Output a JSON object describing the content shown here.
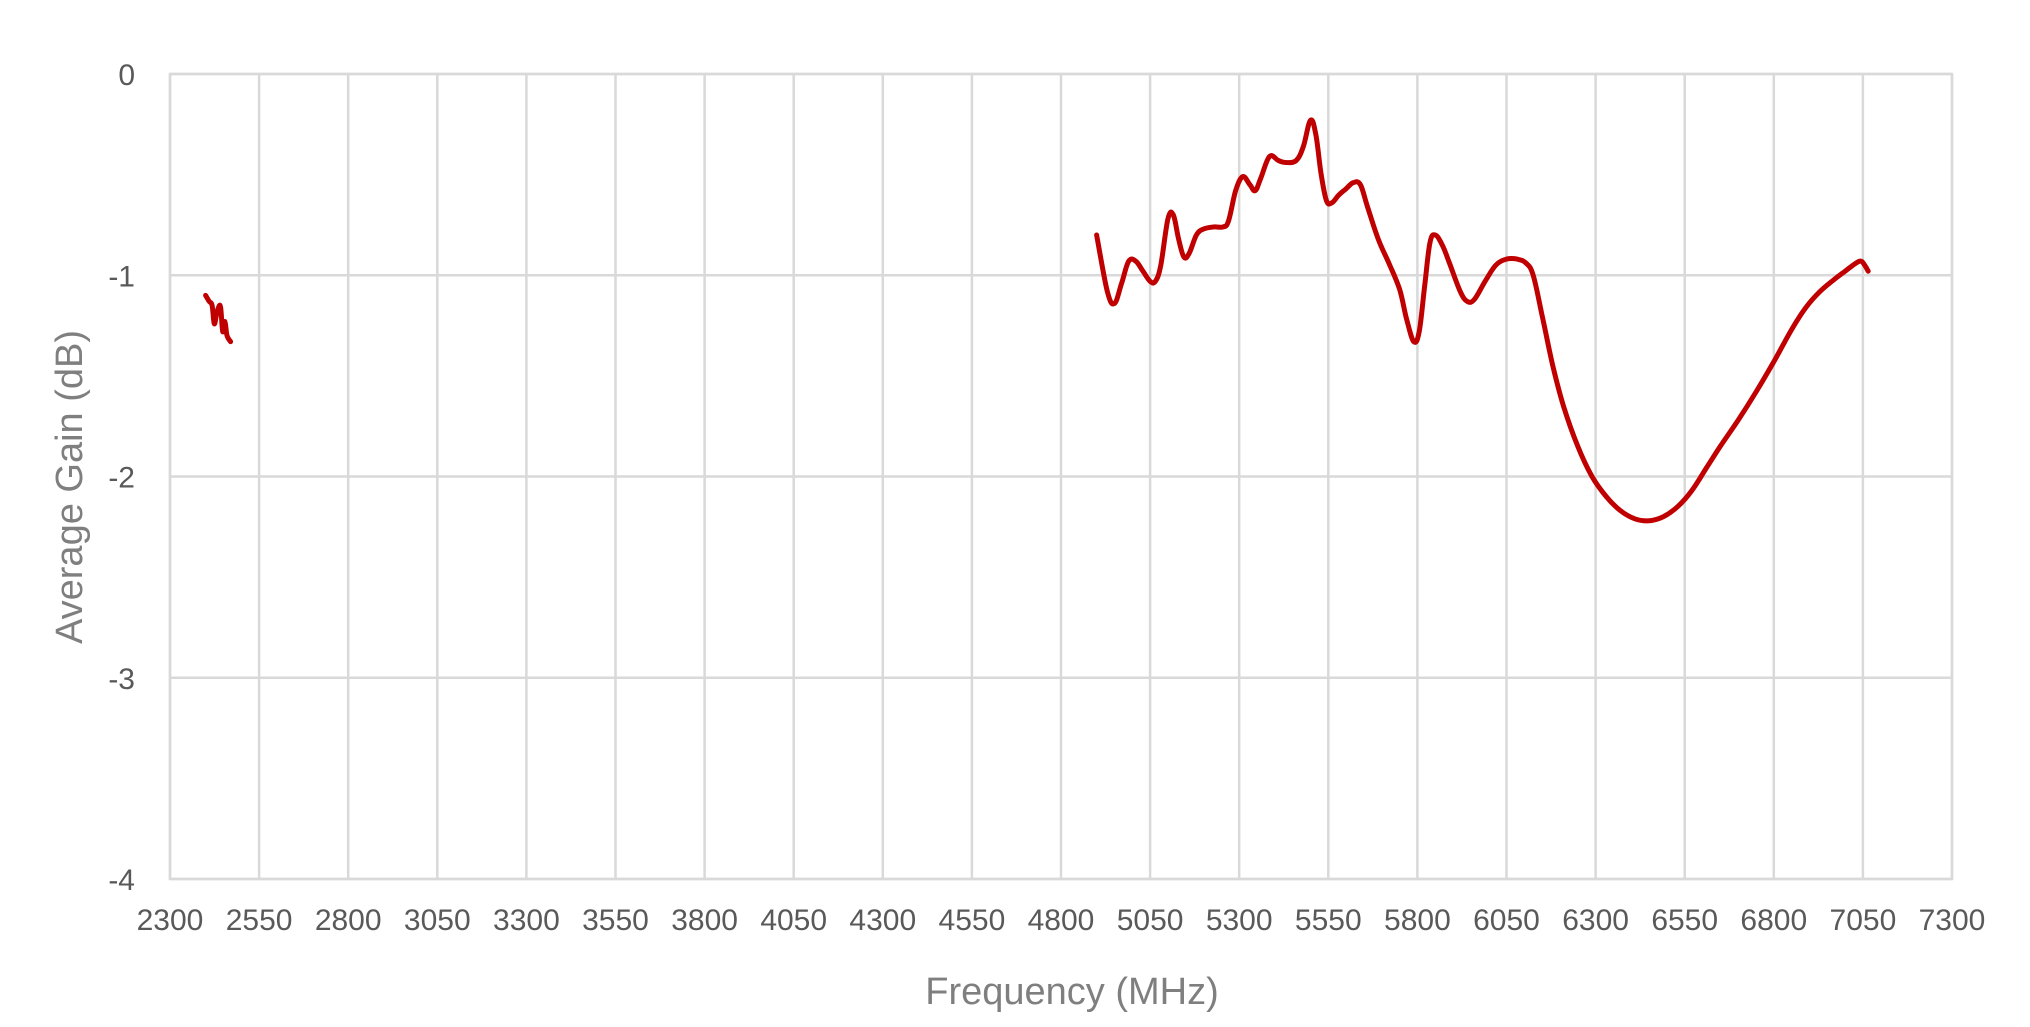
{
  "chart_data": {
    "type": "line",
    "title": "",
    "xlabel": "Frequency (MHz)",
    "ylabel": "Average Gain (dB)",
    "xlim": [
      2300,
      7300
    ],
    "ylim": [
      -4,
      0
    ],
    "x_ticks": [
      2300,
      2550,
      2800,
      3050,
      3300,
      3550,
      3800,
      4050,
      4300,
      4550,
      4800,
      5050,
      5300,
      5550,
      5800,
      6050,
      6300,
      6550,
      6800,
      7050,
      7300
    ],
    "x_tick_labels": [
      "2300",
      "2550",
      "2800",
      "3050",
      "3300",
      "3550",
      "3800",
      "4050",
      "4300",
      "4550",
      "4800",
      "5050",
      "5300",
      "5550",
      "5800",
      "6050",
      "6300",
      "6550",
      "6800",
      "7050",
      "7300"
    ],
    "y_ticks": [
      0,
      -1,
      -2,
      -3,
      -4
    ],
    "y_tick_labels": [
      "0",
      "-1",
      "-2",
      "-3",
      "-4"
    ],
    "grid": true,
    "legend": "none",
    "line_color": "#C00000",
    "grid_color": "#D9D9D9",
    "series": [
      {
        "segments": [
          [
            [
              2400,
              -1.1
            ],
            [
              2410,
              -1.13
            ],
            [
              2418,
              -1.15
            ],
            [
              2424,
              -1.24
            ],
            [
              2430,
              -1.2
            ],
            [
              2436,
              -1.16
            ],
            [
              2442,
              -1.16
            ],
            [
              2448,
              -1.28
            ],
            [
              2454,
              -1.23
            ],
            [
              2460,
              -1.3
            ],
            [
              2470,
              -1.33
            ]
          ],
          [
            [
              4900,
              -0.8
            ],
            [
              4930,
              -1.08
            ],
            [
              4950,
              -1.14
            ],
            [
              4970,
              -1.04
            ],
            [
              4990,
              -0.93
            ],
            [
              5010,
              -0.93
            ],
            [
              5030,
              -0.98
            ],
            [
              5050,
              -1.03
            ],
            [
              5065,
              -1.03
            ],
            [
              5080,
              -0.95
            ],
            [
              5100,
              -0.72
            ],
            [
              5115,
              -0.7
            ],
            [
              5130,
              -0.82
            ],
            [
              5145,
              -0.91
            ],
            [
              5160,
              -0.89
            ],
            [
              5180,
              -0.8
            ],
            [
              5200,
              -0.77
            ],
            [
              5230,
              -0.76
            ],
            [
              5255,
              -0.76
            ],
            [
              5270,
              -0.73
            ],
            [
              5290,
              -0.58
            ],
            [
              5310,
              -0.51
            ],
            [
              5330,
              -0.55
            ],
            [
              5345,
              -0.58
            ],
            [
              5360,
              -0.52
            ],
            [
              5385,
              -0.41
            ],
            [
              5410,
              -0.43
            ],
            [
              5430,
              -0.44
            ],
            [
              5460,
              -0.43
            ],
            [
              5480,
              -0.36
            ],
            [
              5500,
              -0.23
            ],
            [
              5515,
              -0.3
            ],
            [
              5530,
              -0.5
            ],
            [
              5545,
              -0.63
            ],
            [
              5560,
              -0.64
            ],
            [
              5580,
              -0.6
            ],
            [
              5600,
              -0.57
            ],
            [
              5620,
              -0.54
            ],
            [
              5640,
              -0.55
            ],
            [
              5660,
              -0.66
            ],
            [
              5690,
              -0.82
            ],
            [
              5720,
              -0.94
            ],
            [
              5750,
              -1.07
            ],
            [
              5770,
              -1.22
            ],
            [
              5790,
              -1.33
            ],
            [
              5805,
              -1.28
            ],
            [
              5820,
              -1.06
            ],
            [
              5835,
              -0.84
            ],
            [
              5850,
              -0.8
            ],
            [
              5870,
              -0.85
            ],
            [
              5890,
              -0.94
            ],
            [
              5920,
              -1.08
            ],
            [
              5940,
              -1.13
            ],
            [
              5960,
              -1.12
            ],
            [
              5990,
              -1.03
            ],
            [
              6020,
              -0.95
            ],
            [
              6050,
              -0.92
            ],
            [
              6080,
              -0.92
            ],
            [
              6105,
              -0.94
            ],
            [
              6125,
              -1.0
            ],
            [
              6150,
              -1.2
            ],
            [
              6180,
              -1.45
            ],
            [
              6210,
              -1.65
            ],
            [
              6250,
              -1.85
            ],
            [
              6290,
              -2.0
            ],
            [
              6330,
              -2.1
            ],
            [
              6370,
              -2.17
            ],
            [
              6410,
              -2.21
            ],
            [
              6450,
              -2.22
            ],
            [
              6490,
              -2.2
            ],
            [
              6530,
              -2.15
            ],
            [
              6570,
              -2.07
            ],
            [
              6610,
              -1.96
            ],
            [
              6650,
              -1.85
            ],
            [
              6700,
              -1.72
            ],
            [
              6750,
              -1.58
            ],
            [
              6800,
              -1.43
            ],
            [
              6850,
              -1.27
            ],
            [
              6890,
              -1.16
            ],
            [
              6930,
              -1.08
            ],
            [
              6970,
              -1.02
            ],
            [
              7000,
              -0.98
            ],
            [
              7030,
              -0.94
            ],
            [
              7045,
              -0.93
            ],
            [
              7055,
              -0.95
            ],
            [
              7065,
              -0.98
            ]
          ]
        ]
      }
    ]
  }
}
